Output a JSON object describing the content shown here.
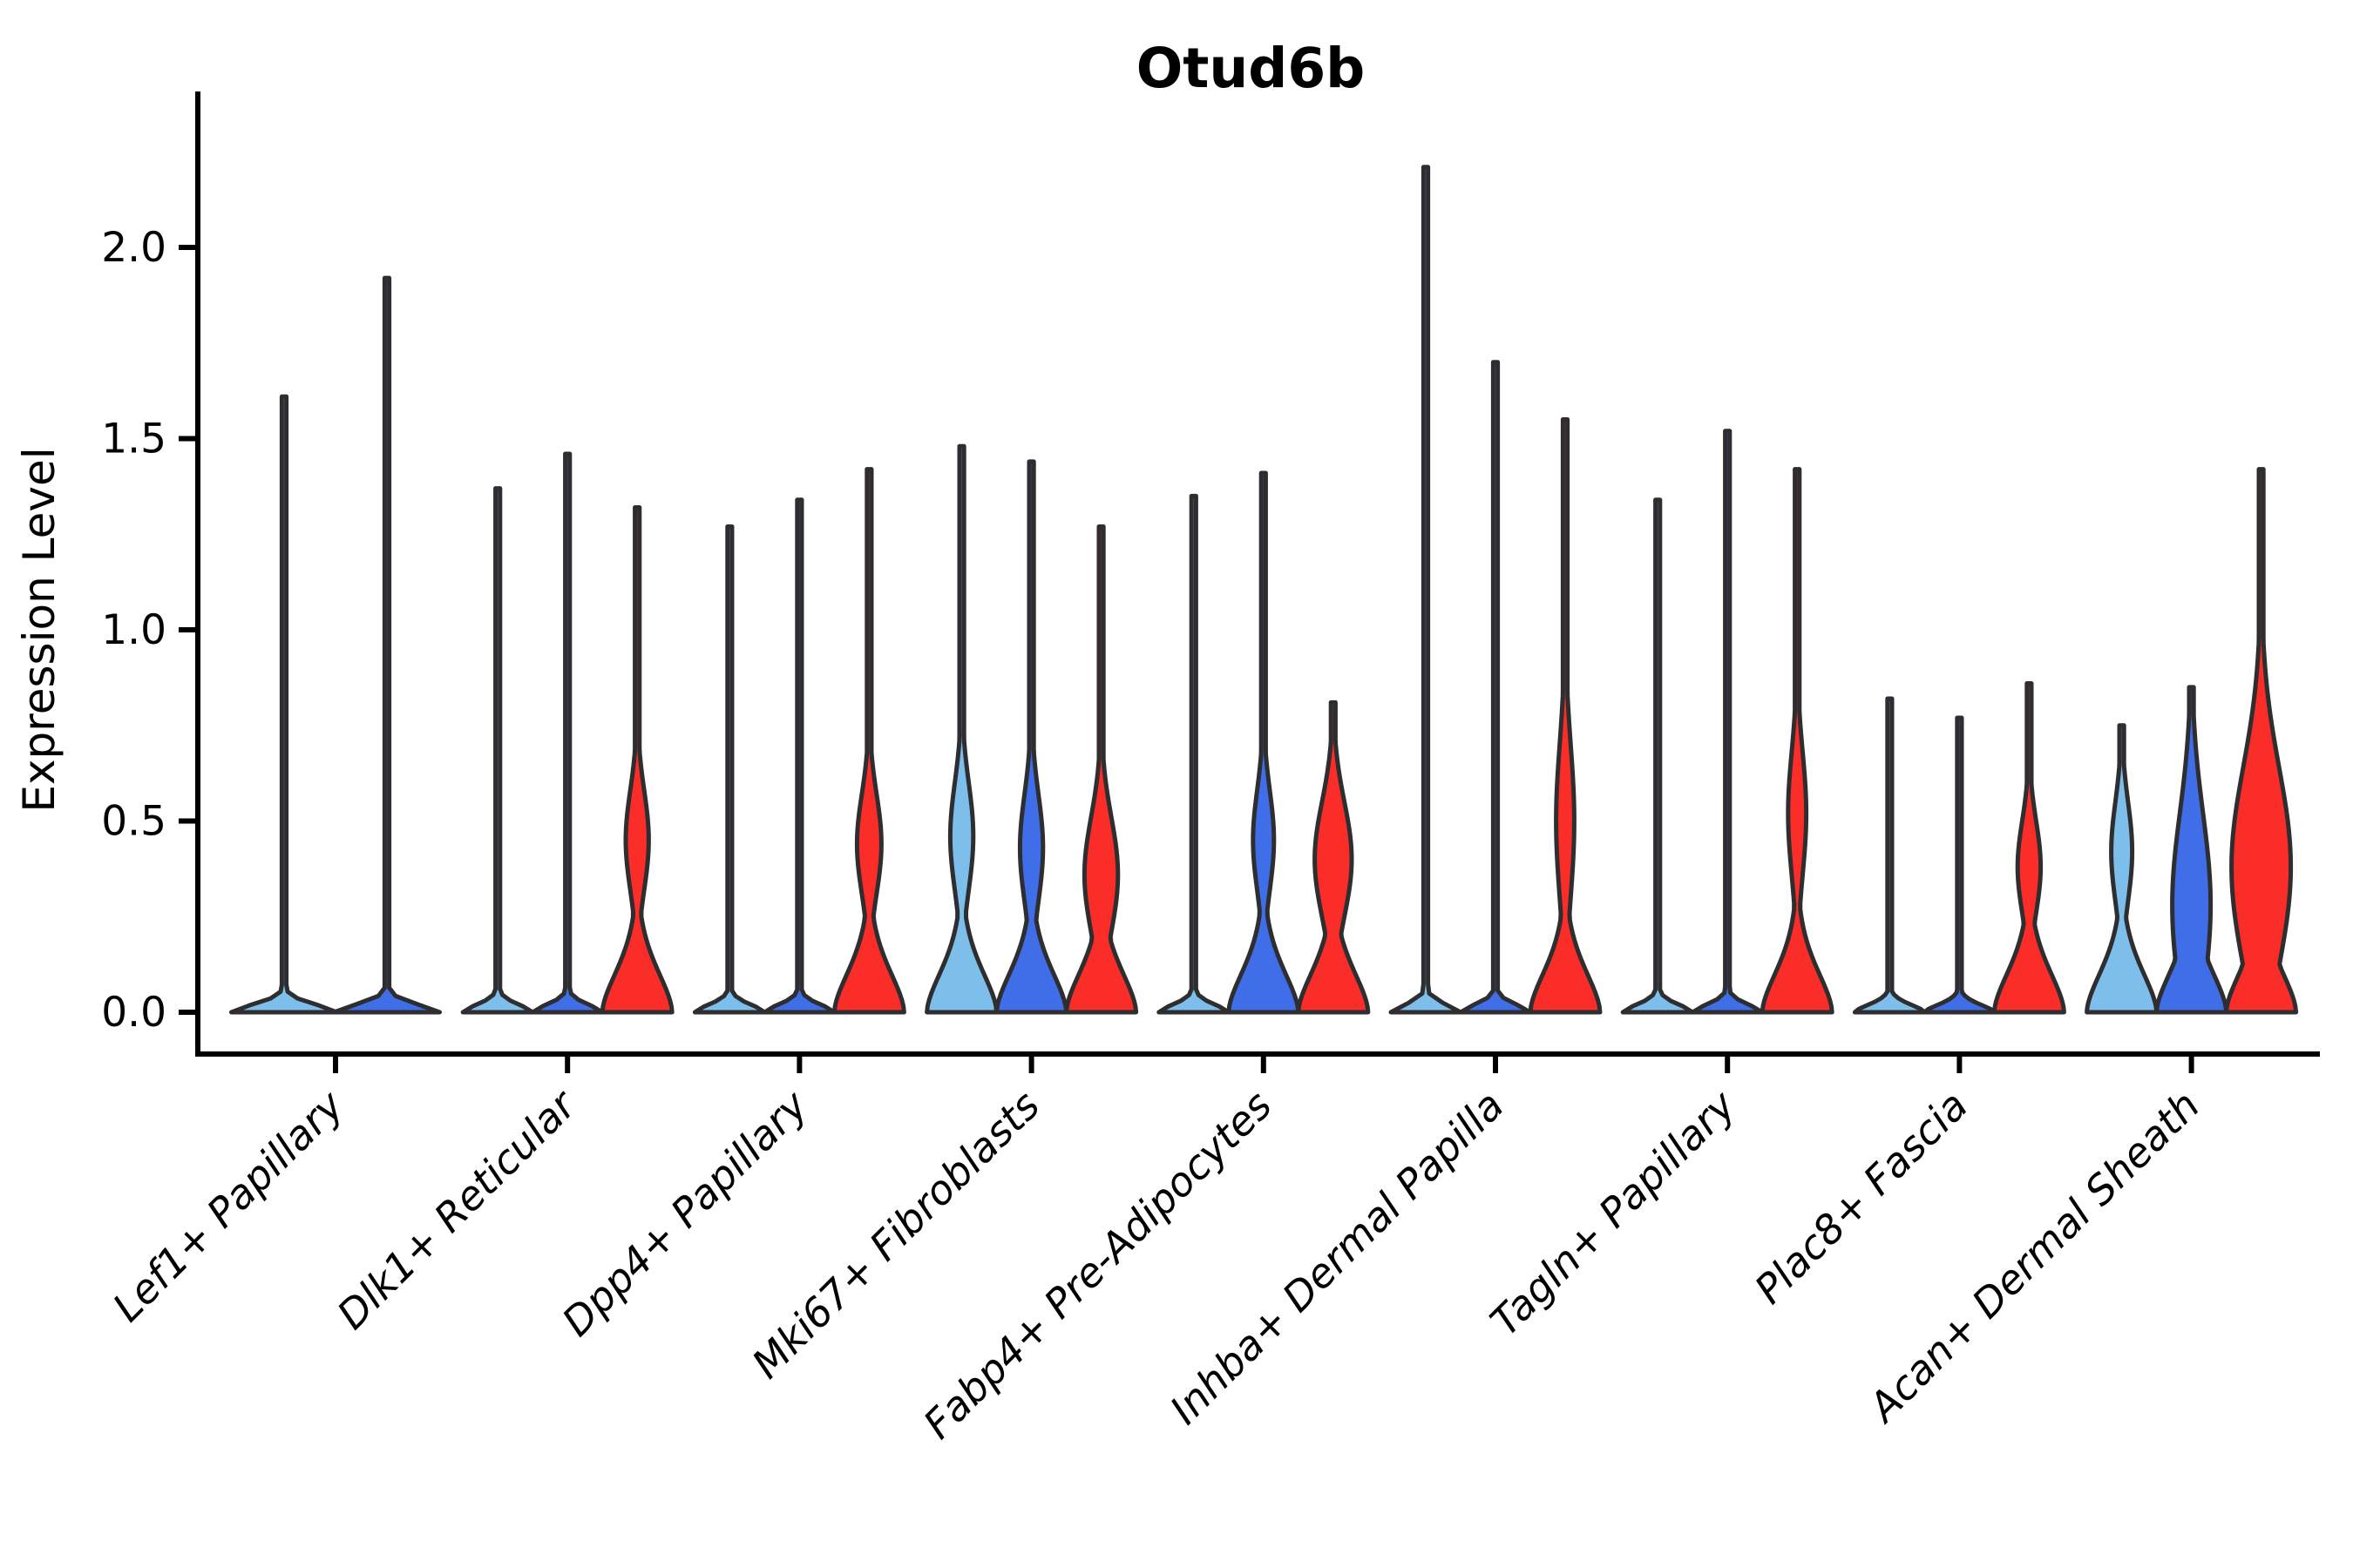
{
  "chart_data": {
    "type": "violin",
    "title": "Otud6b",
    "ylabel": "Expression Level",
    "xlabel": "",
    "ylim": [
      0,
      2.4
    ],
    "yticks": [
      0.0,
      0.5,
      1.0,
      1.5,
      2.0
    ],
    "grid": false,
    "legend_position": "none",
    "axis_color": "#000000",
    "outline_color": "#2E2E31",
    "conditions": [
      {
        "name": "light-blue",
        "color": "#7DBEEB"
      },
      {
        "name": "blue",
        "color": "#3F6EE8"
      },
      {
        "name": "red",
        "color": "#FA2D28"
      }
    ],
    "categories": [
      "Lef1+ Papillary",
      "Dlk1+ Reticular",
      "Dpp4+ Papillary",
      "Mki67+ Fibroblasts",
      "Fabp4+ Pre-Adipocytes",
      "Inhba+ Dermal Papilla",
      "Tagln+ Papillary",
      "Plac8+ Fascia",
      "Acan+ Dermal Sheath"
    ],
    "groups": [
      {
        "category": "Lef1+ Papillary",
        "violins": [
          {
            "condition": 0,
            "max": 1.61
          },
          {
            "condition": 1,
            "max": 1.92
          }
        ]
      },
      {
        "category": "Dlk1+ Reticular",
        "violins": [
          {
            "condition": 0,
            "max": 1.37
          },
          {
            "condition": 1,
            "max": 1.46
          },
          {
            "condition": 2,
            "max": 1.32,
            "bulge": {
              "center": 0.45,
              "peak": 0.33,
              "sigma": 0.13
            }
          }
        ]
      },
      {
        "category": "Dpp4+ Papillary",
        "violins": [
          {
            "condition": 0,
            "max": 1.27
          },
          {
            "condition": 1,
            "max": 1.34
          },
          {
            "condition": 2,
            "max": 1.42,
            "bulge": {
              "center": 0.44,
              "peak": 0.35,
              "sigma": 0.13
            }
          }
        ]
      },
      {
        "category": "Mki67+ Fibroblasts",
        "violins": [
          {
            "condition": 0,
            "max": 1.48,
            "bulge": {
              "center": 0.46,
              "peak": 0.33,
              "sigma": 0.14
            }
          },
          {
            "condition": 1,
            "max": 1.44,
            "bulge": {
              "center": 0.43,
              "peak": 0.33,
              "sigma": 0.14
            }
          },
          {
            "condition": 2,
            "max": 1.27,
            "bulge": {
              "center": 0.36,
              "peak": 0.48,
              "sigma": 0.15
            }
          }
        ]
      },
      {
        "category": "Fabp4+ Pre-Adipocytes",
        "violins": [
          {
            "condition": 0,
            "max": 1.35
          },
          {
            "condition": 1,
            "max": 1.41,
            "bulge": {
              "center": 0.45,
              "peak": 0.3,
              "sigma": 0.13
            }
          },
          {
            "condition": 2,
            "max": 0.81,
            "bulge": {
              "center": 0.4,
              "peak": 0.53,
              "sigma": 0.15
            }
          }
        ]
      },
      {
        "category": "Inhba+ Dermal Papilla",
        "violins": [
          {
            "condition": 0,
            "max": 2.21
          },
          {
            "condition": 1,
            "max": 1.7
          },
          {
            "condition": 2,
            "max": 1.55,
            "bulge": {
              "center": 0.5,
              "peak": 0.26,
              "sigma": 0.2
            }
          }
        ]
      },
      {
        "category": "Tagln+ Papillary",
        "violins": [
          {
            "condition": 0,
            "max": 1.34
          },
          {
            "condition": 1,
            "max": 1.52
          },
          {
            "condition": 2,
            "max": 1.42,
            "bulge": {
              "center": 0.52,
              "peak": 0.26,
              "sigma": 0.16
            }
          }
        ]
      },
      {
        "category": "Plac8+ Fascia",
        "violins": [
          {
            "condition": 0,
            "max": 0.82
          },
          {
            "condition": 1,
            "max": 0.77
          },
          {
            "condition": 2,
            "max": 0.86,
            "bulge": {
              "center": 0.38,
              "peak": 0.33,
              "sigma": 0.12
            }
          }
        ]
      },
      {
        "category": "Acan+ Dermal Sheath",
        "violins": [
          {
            "condition": 0,
            "max": 0.75,
            "bulge": {
              "center": 0.42,
              "peak": 0.3,
              "sigma": 0.13
            }
          },
          {
            "condition": 1,
            "max": 0.85,
            "bulge": {
              "center": 0.28,
              "peak": 0.55,
              "sigma": 0.24
            }
          },
          {
            "condition": 2,
            "max": 1.42,
            "bulge": {
              "center": 0.38,
              "peak": 0.85,
              "sigma": 0.26
            }
          }
        ]
      }
    ]
  }
}
